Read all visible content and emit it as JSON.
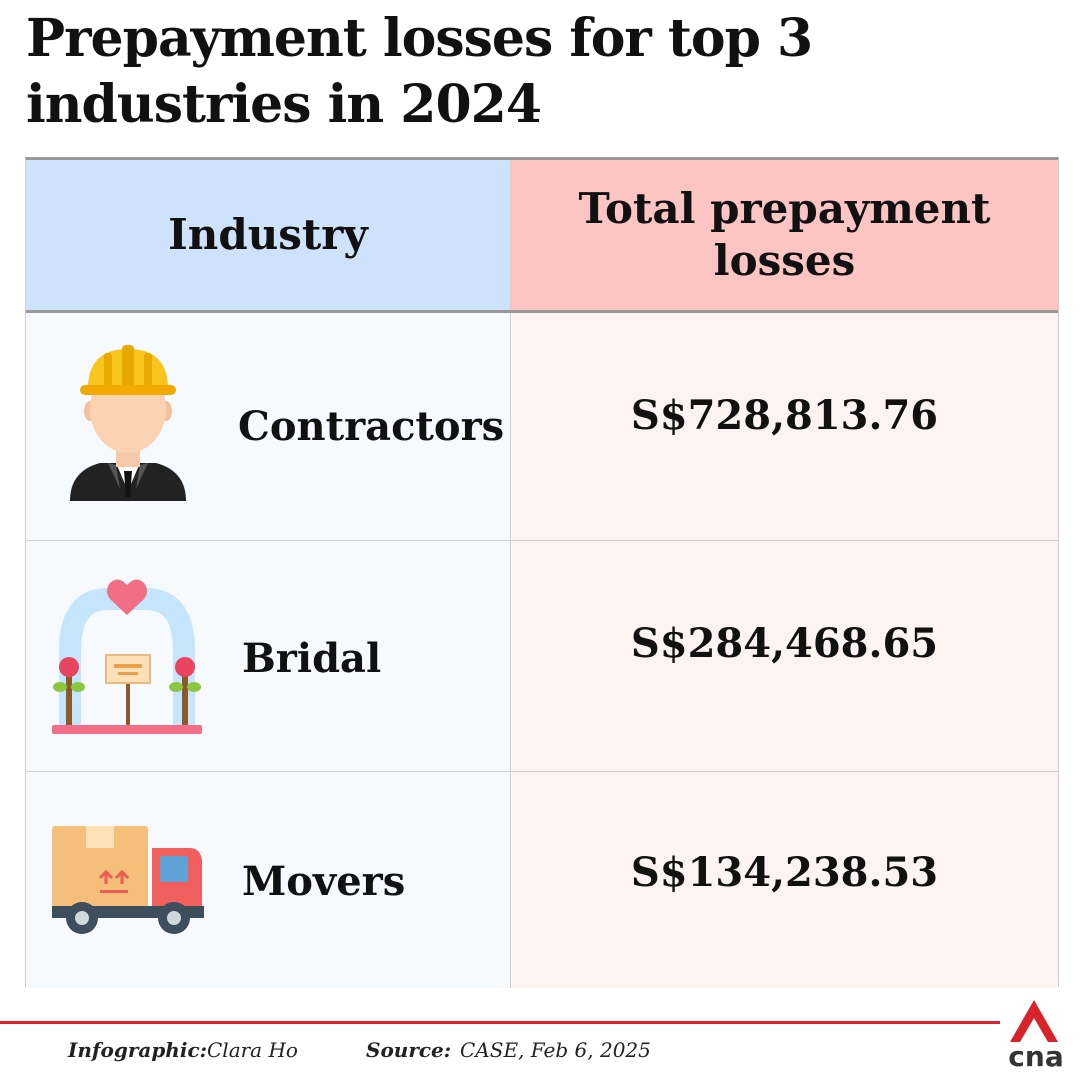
{
  "title": "Prepayment losses for top 3 industries in 2024",
  "chart_data": {
    "type": "table",
    "columns": [
      "Industry",
      "Total prepayment losses"
    ],
    "rows": [
      {
        "industry": "Contractors",
        "losses": "S$728,813.76",
        "icon": "construction-worker-icon"
      },
      {
        "industry": "Bridal",
        "losses": "S$284,468.65",
        "icon": "wedding-arch-icon"
      },
      {
        "industry": "Movers",
        "losses": "S$134,238.53",
        "icon": "moving-truck-icon"
      }
    ]
  },
  "footer": {
    "infographic_label": "Infographic:",
    "infographic_value": "Clara Ho",
    "source_label": "Source:",
    "source_value": "CASE, Feb 6, 2025",
    "logo_text": "cna"
  },
  "colors": {
    "header_left": "#cfe2fb",
    "header_right": "#fdc4c4",
    "accent": "#d8232a"
  }
}
